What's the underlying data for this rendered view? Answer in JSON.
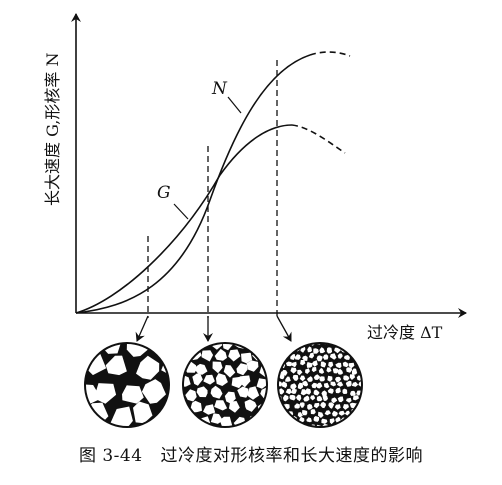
{
  "figure": {
    "y_axis_label": "长大速度 G,形核率 N",
    "x_axis_label": "过冷度 ΔT",
    "curve_n_label": "N",
    "curve_g_label": "G"
  },
  "caption": {
    "number": "图 3-44",
    "text": "过冷度对形核率和长大速度的影响"
  }
}
